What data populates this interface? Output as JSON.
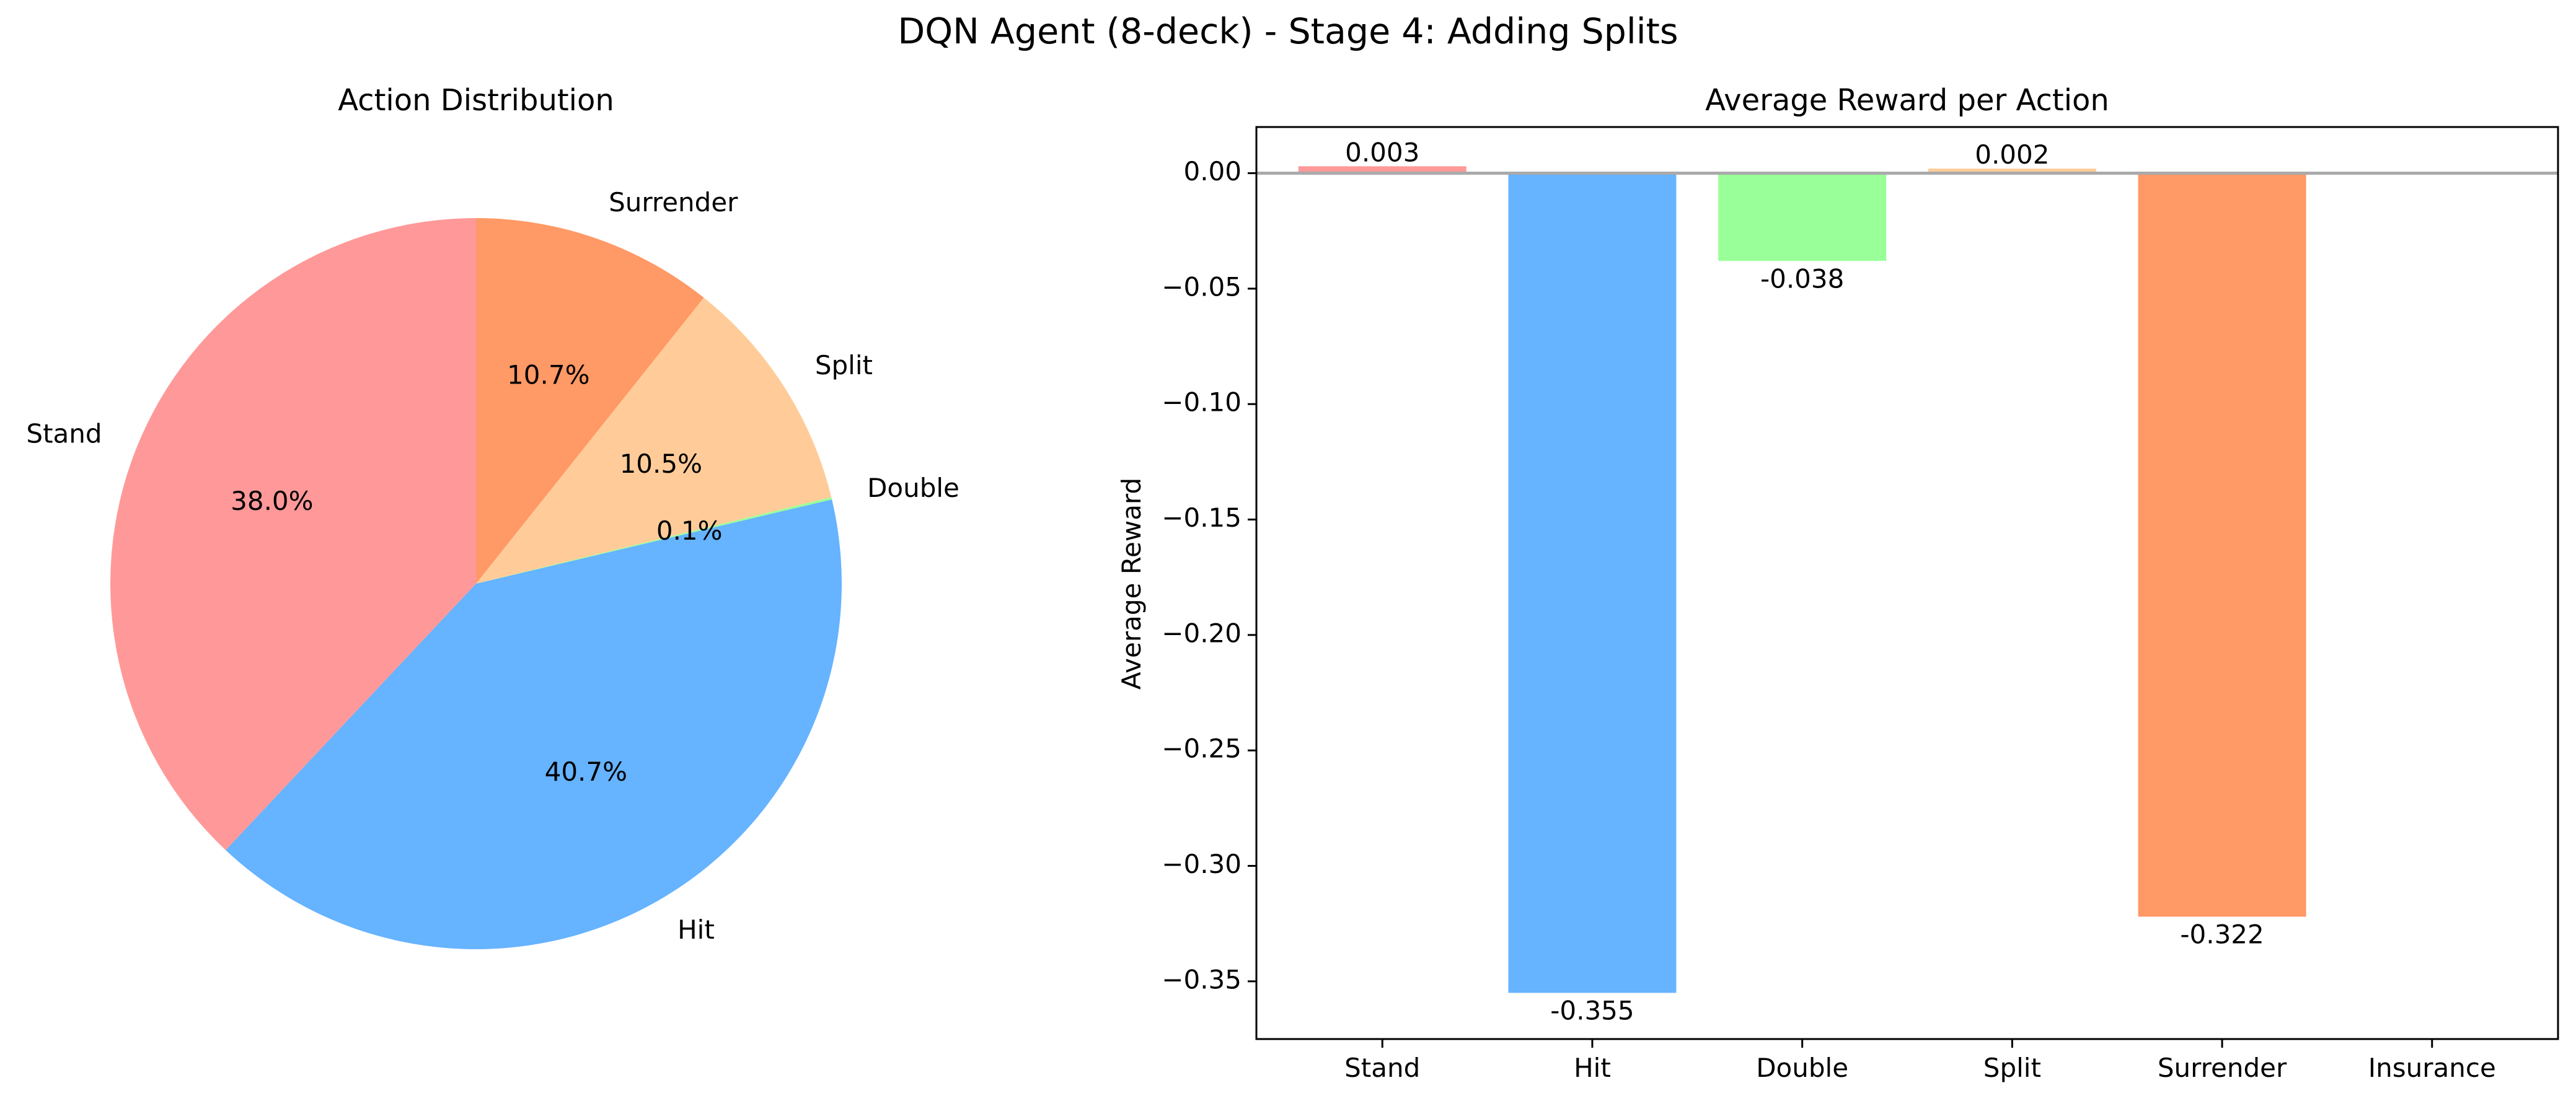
{
  "figure_title": "DQN Agent (8-deck) - Stage 4: Adding Splits",
  "chart_data": [
    {
      "type": "pie",
      "title": "Action Distribution",
      "start_angle": "90 degrees, counter-clockwise",
      "slices": [
        {
          "label": "Stand",
          "value": 38.0,
          "pct_text": "38.0%",
          "color": "#ff9999"
        },
        {
          "label": "Hit",
          "value": 40.7,
          "pct_text": "40.7%",
          "color": "#66b3ff"
        },
        {
          "label": "Double",
          "value": 0.1,
          "pct_text": "0.1%",
          "color": "#99ff99"
        },
        {
          "label": "Split",
          "value": 10.5,
          "pct_text": "10.5%",
          "color": "#ffcc99"
        },
        {
          "label": "Surrender",
          "value": 10.7,
          "pct_text": "10.7%",
          "color": "#ff9966"
        }
      ]
    },
    {
      "type": "bar",
      "title": "Average Reward per Action",
      "ylabel": "Average Reward",
      "xlabel": "",
      "categories": [
        "Stand",
        "Hit",
        "Double",
        "Split",
        "Surrender",
        "Insurance"
      ],
      "values": [
        0.003,
        -0.355,
        -0.038,
        0.002,
        -0.322,
        0.0
      ],
      "value_labels": [
        "0.003",
        "-0.355",
        "-0.038",
        "0.002",
        "-0.322",
        ""
      ],
      "colors": [
        "#ff9999",
        "#66b3ff",
        "#99ff99",
        "#ffcc99",
        "#ff9966",
        "#c2c2f0"
      ],
      "ylim": [
        -0.375,
        0.02
      ],
      "yticks": [
        0.0,
        -0.05,
        -0.1,
        -0.15,
        -0.2,
        -0.25,
        -0.3,
        -0.35
      ],
      "ytick_labels": [
        "0.00",
        "−0.05",
        "−0.10",
        "−0.15",
        "−0.20",
        "−0.25",
        "−0.30",
        "−0.35"
      ],
      "zero_line": true,
      "grid": false
    }
  ]
}
